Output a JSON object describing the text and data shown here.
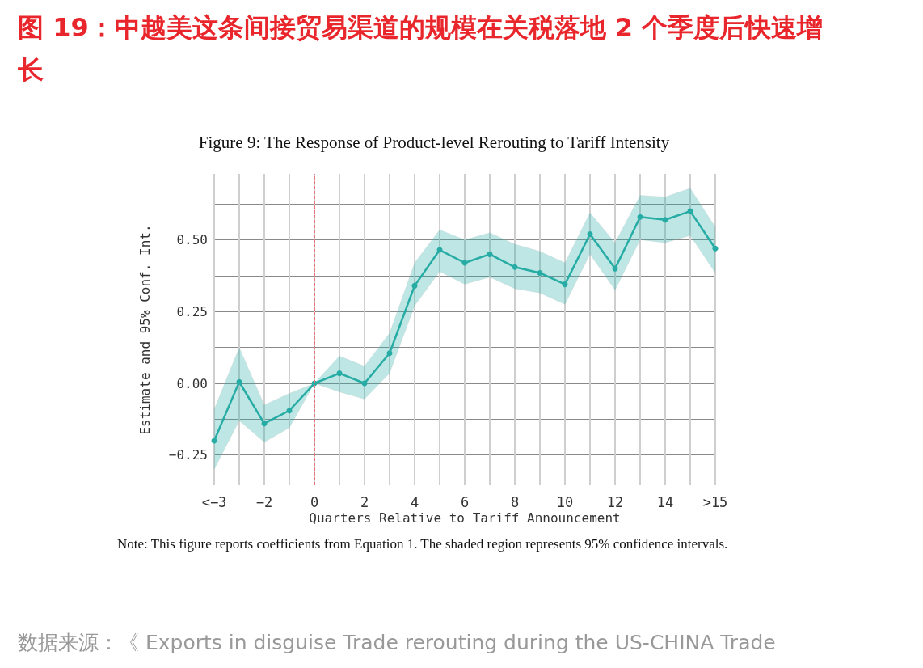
{
  "chart_data": {
    "type": "line",
    "title": "图 19：中越美这条间接贸易渠道的规模在关税落地 2 个季度后快速增长",
    "subtitle": "Figure 9: The Response of Product-level Rerouting to Tariff Intensity",
    "xlabel": "Quarters Relative to Tariff Announcement",
    "ylabel": "Estimate and 95% Conf. Int.",
    "categories": [
      "<−3",
      null,
      "−2",
      null,
      "0",
      null,
      "2",
      null,
      "4",
      null,
      "6",
      null,
      "8",
      null,
      "10",
      null,
      "12",
      null,
      "14",
      null,
      ">15"
    ],
    "series": [
      {
        "color": "#26aca4",
        "values": [
          -0.2,
          0.005,
          -0.14,
          -0.095,
          0,
          0.035,
          0.0,
          0.105,
          0.34,
          0.465,
          0.42,
          0.45,
          0.405,
          0.385,
          0.345,
          0.52,
          0.4,
          0.58,
          0.57,
          0.6,
          0.47
        ],
        "lower": [
          -0.3,
          -0.13,
          -0.205,
          -0.155,
          0,
          -0.03,
          -0.055,
          0.035,
          0.27,
          0.39,
          0.345,
          0.37,
          0.33,
          0.315,
          0.275,
          0.45,
          0.325,
          0.5,
          0.49,
          0.515,
          0.385
        ],
        "upper": [
          -0.09,
          0.125,
          -0.075,
          -0.035,
          0,
          0.095,
          0.06,
          0.175,
          0.42,
          0.535,
          0.5,
          0.525,
          0.485,
          0.46,
          0.42,
          0.595,
          0.49,
          0.655,
          0.65,
          0.68,
          0.545
        ]
      }
    ],
    "ylim": [
      -0.355,
      0.73
    ],
    "yticks": [
      {
        "value": -0.25,
        "label": "−0.25"
      },
      {
        "value": -0.125,
        "label": null
      },
      {
        "value": 0,
        "label": "0.00"
      },
      {
        "value": 0.125,
        "label": null
      },
      {
        "value": 0.25,
        "label": "0.25"
      },
      {
        "value": 0.375,
        "label": null
      },
      {
        "value": 0.5,
        "label": "0.50"
      },
      {
        "value": 0.625,
        "label": null
      }
    ],
    "grid": true,
    "marker": "circle",
    "line_style": "solid",
    "ref_lines": [
      {
        "axis": "x",
        "value": "0",
        "color": "#e8737a",
        "line_style": "dashed"
      }
    ],
    "annotations": [
      "Note: This figure reports coefficients from Equation 1. The shaded region represents 95% confidence intervals.",
      "数据来源：《 Exports in disguise Trade rerouting during the US-CHINA Trade"
    ]
  }
}
